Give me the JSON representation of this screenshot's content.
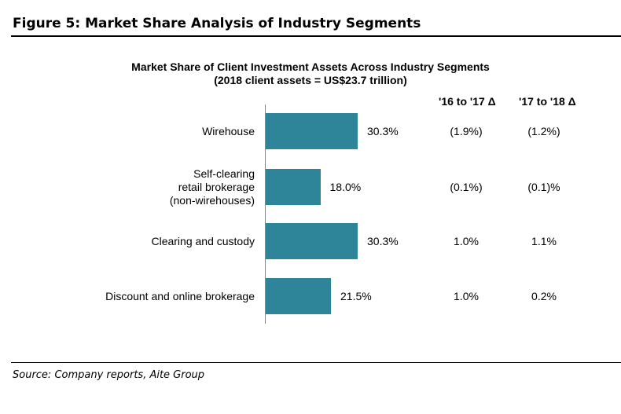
{
  "figure_title": "Figure 5: Market Share Analysis of Industry Segments",
  "source": "Source: Company reports, Aite Group",
  "chart_data": {
    "type": "bar",
    "orientation": "horizontal",
    "title": "Market Share of Client Investment Assets Across Industry Segments",
    "subtitle": "(2018 client assets = US$23.7 trillion)",
    "categories": [
      [
        "Wirehouse"
      ],
      [
        "Self-clearing",
        "retail brokerage",
        "(non-wirehouses)"
      ],
      [
        "Clearing and custody"
      ],
      [
        "Discount and online brokerage"
      ]
    ],
    "values": [
      30.3,
      18.0,
      30.3,
      21.5
    ],
    "data_labels": [
      "30.3%",
      "18.0%",
      "30.3%",
      "21.5%"
    ],
    "color": "#2e859a",
    "table_columns": [
      {
        "header": "'16 to '17 Δ",
        "values": [
          "(1.9%)",
          "(0.1%)",
          "1.0%",
          "1.0%"
        ]
      },
      {
        "header": "'17 to '18 Δ",
        "values": [
          "(1.2%)",
          "(0.1)%",
          "1.1%",
          "0.2%"
        ]
      }
    ]
  }
}
